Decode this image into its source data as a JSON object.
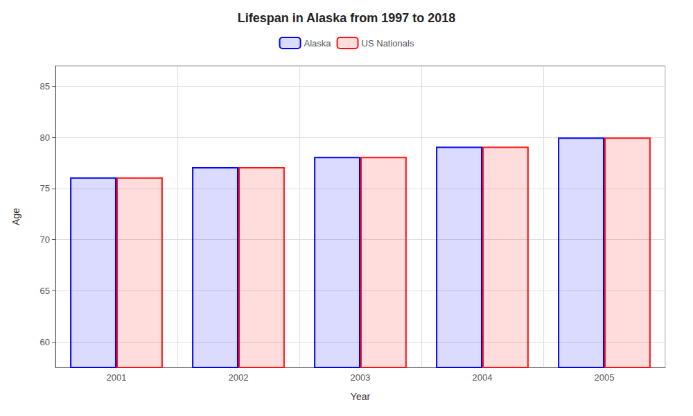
{
  "chart_data": {
    "type": "bar",
    "title": "Lifespan in Alaska from 1997 to 2018",
    "xlabel": "Year",
    "ylabel": "Age",
    "categories": [
      "2001",
      "2002",
      "2003",
      "2004",
      "2005"
    ],
    "series": [
      {
        "name": "Alaska",
        "color": "#0000ff",
        "values": [
          76.1,
          77.1,
          78.1,
          79.1,
          80.0
        ]
      },
      {
        "name": "US Nationals",
        "color": "#ff1111",
        "values": [
          76.1,
          77.1,
          78.1,
          79.1,
          80.0
        ]
      }
    ],
    "ylim": [
      57.5,
      87
    ],
    "yticks": [
      60,
      65,
      70,
      75,
      80,
      85
    ],
    "grid": true,
    "legend": "top"
  }
}
